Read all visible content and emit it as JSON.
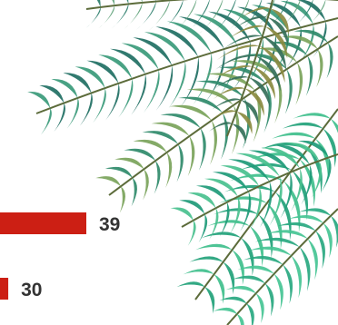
{
  "chart_data": {
    "type": "bar",
    "orientation": "horizontal",
    "title": "",
    "xlabel": "",
    "ylabel": "",
    "categories": [
      "",
      ""
    ],
    "values": [
      39,
      30
    ],
    "data_labels": [
      "39",
      "30"
    ],
    "grid": false,
    "legend": "none"
  },
  "colors": {
    "bar": "#cc1f14",
    "label": "#333333",
    "background": "#ffffff"
  },
  "decoration": {
    "image": "palm-leaves-icon"
  }
}
